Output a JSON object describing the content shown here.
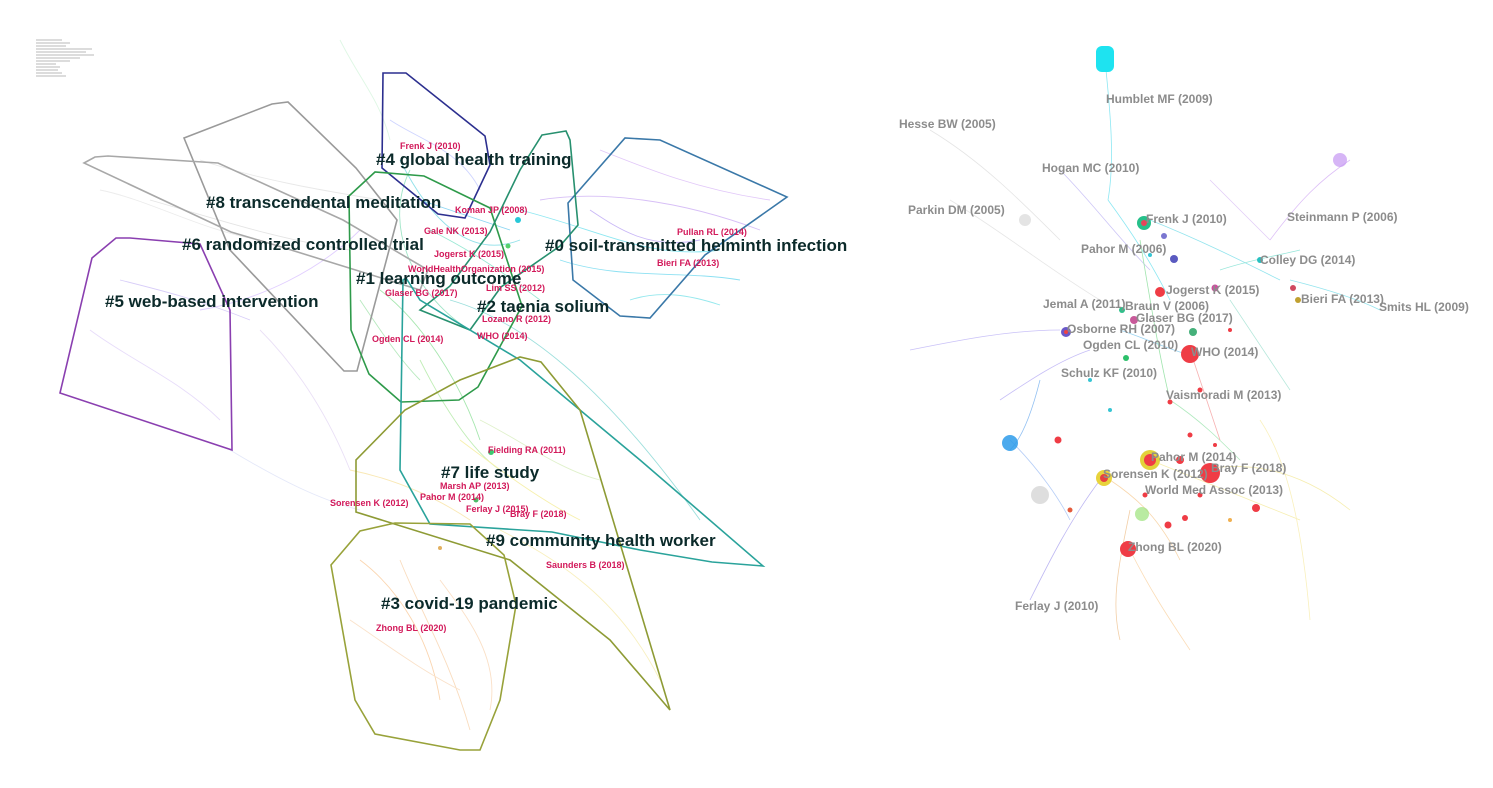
{
  "left_panel": {
    "clusters": [
      {
        "id": "c0",
        "label": "#0 soil-transmitted helminth infection",
        "color": "#3a78a8"
      },
      {
        "id": "c1",
        "label": "#1 learning outcome",
        "color": "#2e9a4a"
      },
      {
        "id": "c2",
        "label": "#2 taenia solium",
        "color": "#27906f"
      },
      {
        "id": "c3",
        "label": "#3 covid-19 pandemic",
        "color": "#98a23a"
      },
      {
        "id": "c4",
        "label": "#4 global health training",
        "color": "#2c2f8f"
      },
      {
        "id": "c5",
        "label": "#5 web-based intervention",
        "color": "#8a3fb0"
      },
      {
        "id": "c6",
        "label": "#6 randomized controlled trial",
        "color": "#9a9a9a"
      },
      {
        "id": "c7",
        "label": "#7 life study",
        "color": "#8e9b35"
      },
      {
        "id": "c8",
        "label": "#8 transcendental meditation",
        "color": "#a3a3a3"
      },
      {
        "id": "c9",
        "label": "#9 community health worker",
        "color": "#2aa39b"
      }
    ],
    "references": [
      "Frenk J (2010)",
      "Koman JP (2008)",
      "Gale NK (2013)",
      "Jogerst K (2015)",
      "WorldHealthOrganization (2015)",
      "Glaser BG (2017)",
      "Lim SS (2012)",
      "Lozano R (2012)",
      "Ogden CL (2014)",
      "WHO (2014)",
      "Pullan RL (2014)",
      "Bieri FA (2013)",
      "Fielding RA (2011)",
      "Marsh AP (2013)",
      "Pahor M (2014)",
      "Sorensen K (2012)",
      "Ferlay J (2015)",
      "Bray F (2018)",
      "Saunders B (2018)",
      "Zhong BL (2020)"
    ]
  },
  "right_panel": {
    "labels": [
      "Humblet MF (2009)",
      "Hesse BW (2005)",
      "Hogan MC (2010)",
      "Parkin DM (2005)",
      "Frenk J (2010)",
      "Steinmann P (2006)",
      "Pahor M (2006)",
      "Colley DG (2014)",
      "Jogerst K (2015)",
      "Jemal A (2011)",
      "Braun V (2006)",
      "Bieri FA (2013)",
      "Smits HL (2009)",
      "Glaser BG (2017)",
      "Osborne RH (2007)",
      "Ogden CL (2010)",
      "WHO (2014)",
      "Schulz KF (2010)",
      "Vaismoradi M (2013)",
      "Pahor M (2014)",
      "Sorensen K (2012)",
      "Bray F (2018)",
      "World Med Assoc (2013)",
      "Zhong BL (2020)",
      "Ferlay J (2010)"
    ]
  }
}
